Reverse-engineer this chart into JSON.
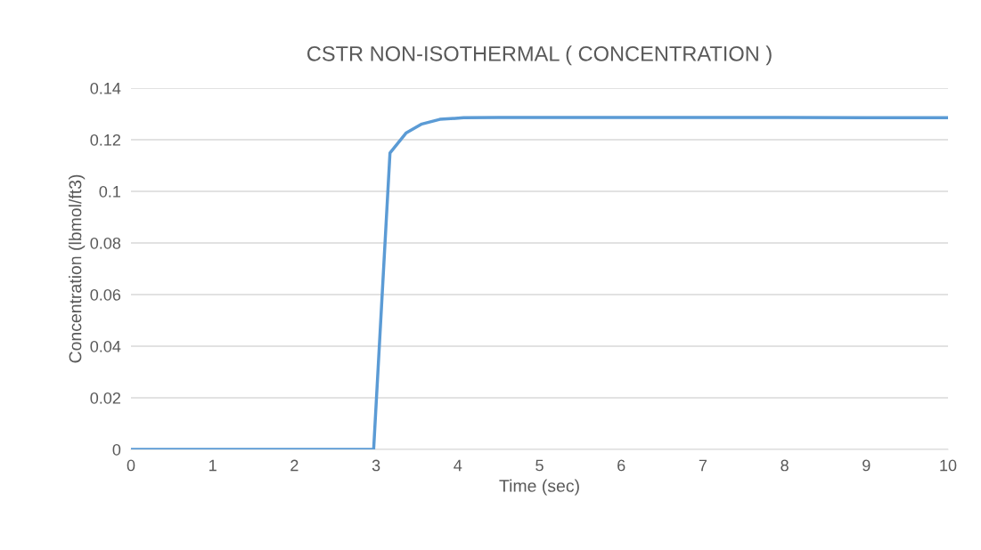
{
  "chart_data": {
    "type": "line",
    "title": "CSTR NON-ISOTHERMAL ( CONCENTRATION )",
    "xlabel": "Time (sec)",
    "ylabel": "Concentration (lbmol/ft3)",
    "x": [
      0,
      1,
      2,
      2.97,
      3.17,
      3.37,
      3.56,
      3.78,
      4.07,
      4.5,
      5,
      6,
      7,
      8,
      9,
      10
    ],
    "series": [
      {
        "color": "#5b9bd5",
        "values": [
          0,
          0,
          0,
          0,
          0.1149,
          0.1227,
          0.1261,
          0.1279,
          0.1285,
          0.1286,
          0.1286,
          0.1286,
          0.1286,
          0.1286,
          0.1285,
          0.1285
        ]
      }
    ],
    "xlim": [
      0,
      10
    ],
    "xticks": [
      0,
      1,
      2,
      3,
      4,
      5,
      6,
      7,
      8,
      9,
      10
    ],
    "ylim": [
      0,
      0.14
    ],
    "yticks": [
      0,
      0.02,
      0.04,
      0.06,
      0.08,
      0.1,
      0.12,
      0.14
    ],
    "grid": "y",
    "legend": false,
    "marker": "none",
    "line_style": "solid"
  }
}
